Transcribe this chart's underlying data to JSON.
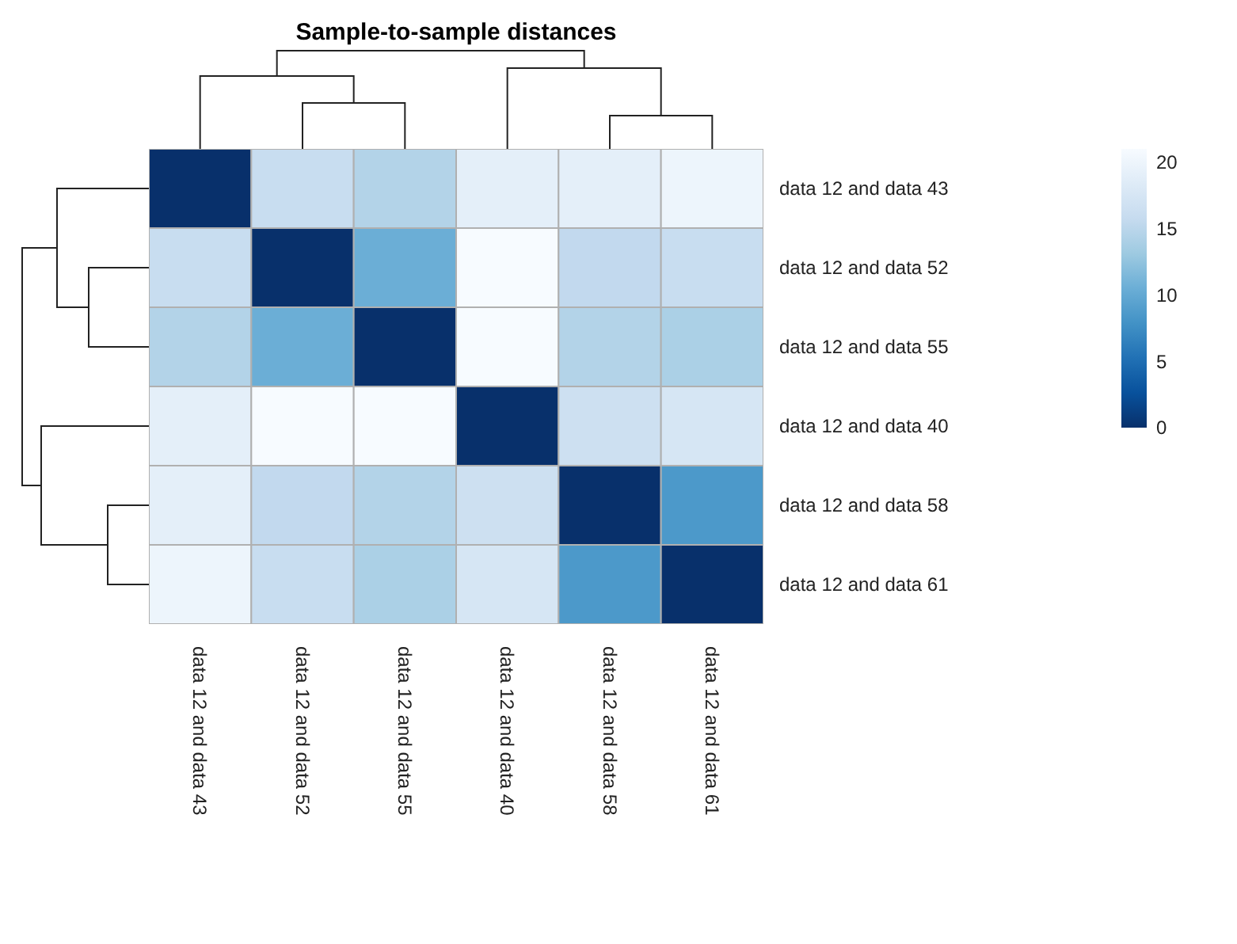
{
  "chart_data": {
    "type": "heatmap",
    "title": "Sample-to-sample distances",
    "categories": [
      "data 12 and data 43",
      "data 12 and data 52",
      "data 12 and data 55",
      "data 12 and data 40",
      "data 12 and data 58",
      "data 12 and data 61"
    ],
    "y_categories": [
      "data 12 and data 43",
      "data 12 and data 52",
      "data 12 and data 55",
      "data 12 and data 40",
      "data 12 and data 58",
      "data 12 and data 61"
    ],
    "cells": [
      [
        0,
        16,
        14.5,
        19,
        19,
        20
      ],
      [
        16,
        0,
        10.5,
        21,
        15.5,
        16
      ],
      [
        14.5,
        10.5,
        0,
        21,
        14.5,
        14
      ],
      [
        19,
        21,
        21,
        0,
        16.5,
        17.5
      ],
      [
        19,
        15.5,
        14.5,
        16.5,
        0,
        8.5
      ],
      [
        20,
        16,
        14,
        17.5,
        8.5,
        0
      ]
    ],
    "clim": [
      0,
      21
    ],
    "cticks": [
      0,
      5,
      10,
      15,
      20
    ]
  }
}
